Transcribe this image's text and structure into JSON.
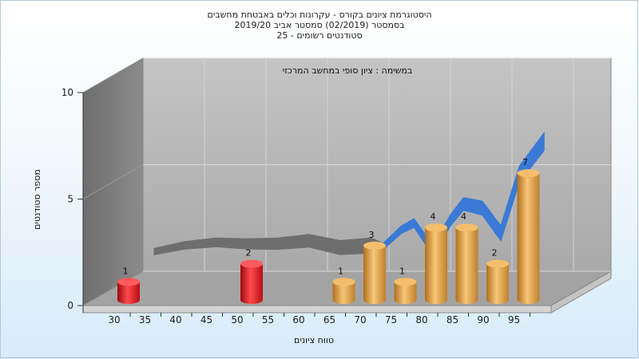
{
  "chart_data": {
    "type": "bar",
    "title_lines": [
      "היסטוגרמת ציונים בקורס - עקרונות וכלים באבטחת מחשבים",
      "בסמסטר  (02/2019)  סמסטר אביב 2019/20",
      "סטודנטים רשומים - 25"
    ],
    "subtitle": "במשימה : ציון סופי במחשב המרכזי",
    "xlabel": "טווח ציונים",
    "ylabel": "מספר סטודנטים",
    "x_ticks": [
      "30",
      "35",
      "40",
      "45",
      "50",
      "55",
      "60",
      "65",
      "70",
      "75",
      "80",
      "85",
      "90",
      "95"
    ],
    "y_ticks": [
      "0",
      "5",
      "10"
    ],
    "ylim": [
      0,
      10
    ],
    "grid": true,
    "bars": [
      {
        "x": 30,
        "value": 1,
        "color": "red"
      },
      {
        "x": 50,
        "value": 2,
        "color": "red"
      },
      {
        "x": 65,
        "value": 1,
        "color": "orange"
      },
      {
        "x": 70,
        "value": 3,
        "color": "orange"
      },
      {
        "x": 75,
        "value": 1,
        "color": "orange"
      },
      {
        "x": 80,
        "value": 4,
        "color": "orange"
      },
      {
        "x": 85,
        "value": 4,
        "color": "orange"
      },
      {
        "x": 90,
        "value": 2,
        "color": "orange"
      },
      {
        "x": 95,
        "value": 7,
        "color": "orange"
      }
    ],
    "distribution_curve": {
      "gray_part": [
        {
          "x": 30,
          "y": 1.3
        },
        {
          "x": 35,
          "y": 1.7
        },
        {
          "x": 40,
          "y": 1.9
        },
        {
          "x": 45,
          "y": 1.85
        },
        {
          "x": 50,
          "y": 1.9
        },
        {
          "x": 55,
          "y": 2.1
        },
        {
          "x": 60,
          "y": 1.75
        },
        {
          "x": 65,
          "y": 1.9
        },
        {
          "x": 67,
          "y": 1.6
        }
      ],
      "blue_part": [
        {
          "x": 67,
          "y": 1.6
        },
        {
          "x": 70,
          "y": 2.6
        },
        {
          "x": 72,
          "y": 3.0
        },
        {
          "x": 75,
          "y": 1.5
        },
        {
          "x": 78,
          "y": 3.3
        },
        {
          "x": 80,
          "y": 4.2
        },
        {
          "x": 83,
          "y": 4.0
        },
        {
          "x": 86,
          "y": 2.6
        },
        {
          "x": 89,
          "y": 6.0
        },
        {
          "x": 93,
          "y": 7.9
        }
      ]
    },
    "colors": {
      "red_bar": "#e8121a",
      "orange_bar": "#eba442",
      "gray_curve": "#6e6e6e",
      "blue_curve": "#3a7ad6",
      "back_wall": "#b9b9b9",
      "side_wall": "#7d7d7d",
      "floor": "#a0a0a0"
    }
  }
}
